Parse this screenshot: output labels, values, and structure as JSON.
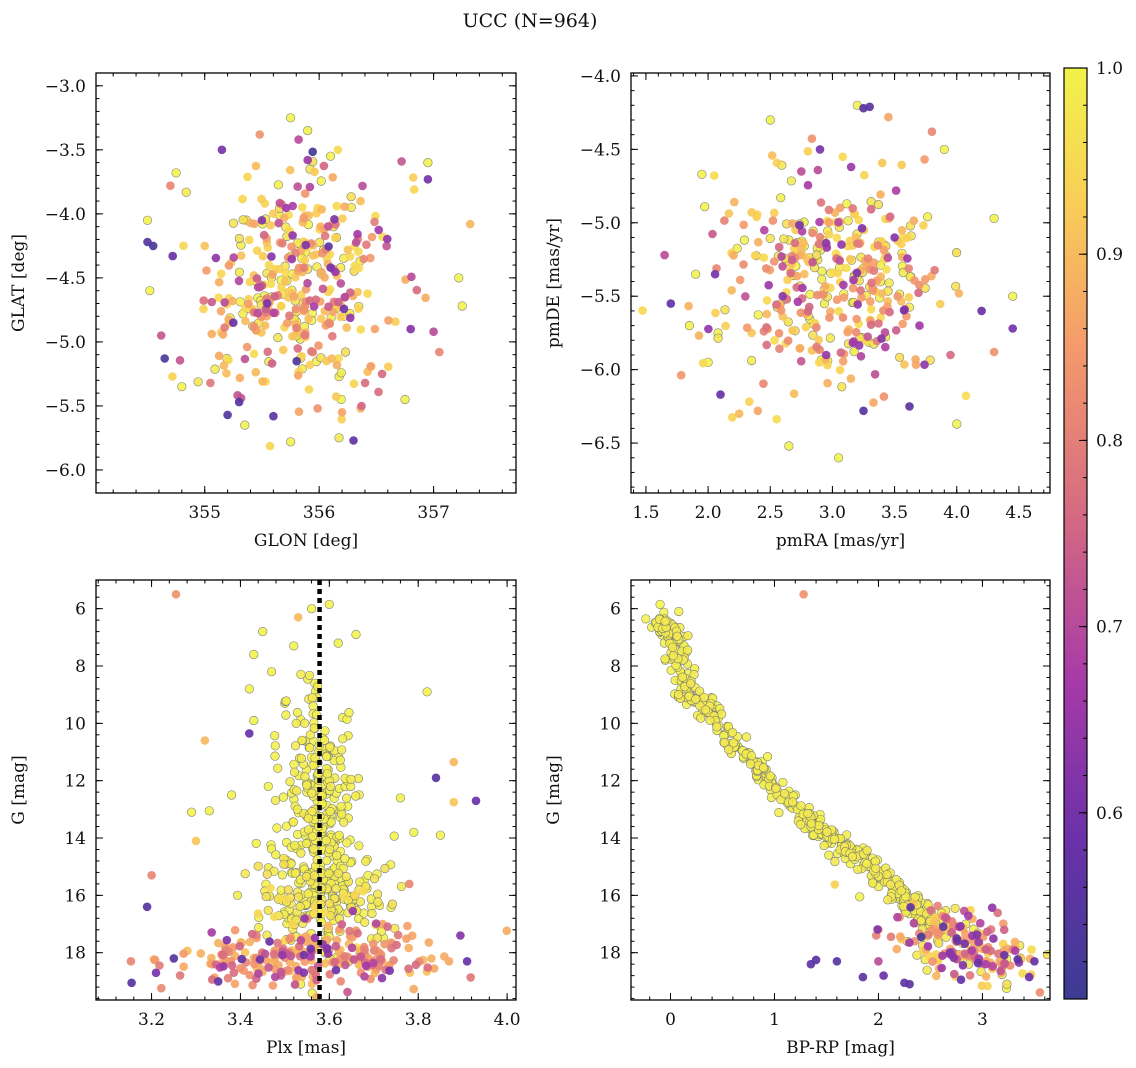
{
  "figure_title": "UCC (N=964)",
  "colors": {
    "stops": [
      "#3b3c93",
      "#6a31a8",
      "#a63aa8",
      "#d56a82",
      "#f49a6b",
      "#f8cf56",
      "#f2f24a"
    ],
    "marker_edge": "#777777",
    "vline": "#000000"
  },
  "chart_data": [
    {
      "id": "glon-glat",
      "type": "scatter",
      "xlabel": "GLON [deg]",
      "ylabel": "GLAT [deg]",
      "xlim": [
        354.05,
        357.72
      ],
      "ylim": [
        -6.18,
        -2.9
      ],
      "invert_y": false,
      "xticks": [
        355,
        356,
        357
      ],
      "yticks": [
        -6.0,
        -5.5,
        -5.0,
        -4.5,
        -4.0,
        -3.5,
        -3.0
      ],
      "tick_decimals_x": 0,
      "tick_decimals_y": 1,
      "points": [
        [
          354.55,
          -4.25,
          0.52
        ],
        [
          354.5,
          -4.22,
          0.55
        ],
        [
          354.72,
          -4.33,
          0.58
        ],
        [
          354.65,
          -5.13,
          0.53
        ],
        [
          355.2,
          -5.57,
          0.54
        ],
        [
          355.3,
          -5.47,
          0.55
        ],
        [
          355.6,
          -5.58,
          0.56
        ],
        [
          356.3,
          -5.77,
          0.57
        ],
        [
          355.15,
          -3.5,
          0.6
        ],
        [
          355.48,
          -3.38,
          0.82
        ],
        [
          355.82,
          -3.42,
          0.7
        ],
        [
          356.72,
          -3.59,
          0.72
        ],
        [
          356.95,
          -3.73,
          0.6
        ],
        [
          357.32,
          -4.08,
          0.88
        ],
        [
          357.0,
          -4.92,
          0.7
        ],
        [
          357.05,
          -5.08,
          0.8
        ],
        [
          356.55,
          -5.25,
          0.75
        ],
        [
          355.05,
          -5.32,
          0.78
        ],
        [
          354.7,
          -3.78,
          0.8
        ],
        [
          355.9,
          -3.58,
          0.65
        ],
        [
          356.2,
          -5.55,
          0.85
        ],
        [
          355.25,
          -4.85,
          0.58
        ],
        [
          356.1,
          -4.42,
          0.6
        ],
        [
          355.5,
          -4.05,
          0.62
        ],
        [
          354.62,
          -4.95,
          0.72
        ],
        [
          355.0,
          -4.25,
          0.9
        ],
        [
          356.8,
          -4.9,
          0.62
        ],
        [
          355.75,
          -3.25,
          1.0
        ],
        [
          355.9,
          -3.35,
          1.0
        ],
        [
          356.1,
          -3.55,
          1.0
        ],
        [
          355.35,
          -5.65,
          1.0
        ],
        [
          355.75,
          -5.78,
          1.0
        ],
        [
          356.75,
          -5.45,
          1.0
        ],
        [
          357.25,
          -4.72,
          1.0
        ],
        [
          357.22,
          -4.5,
          1.0
        ],
        [
          354.5,
          -4.05,
          1.0
        ],
        [
          354.52,
          -4.6,
          1.0
        ],
        [
          354.75,
          -3.68,
          1.0
        ],
        [
          356.95,
          -3.6,
          1.0
        ],
        [
          354.8,
          -5.35,
          1.0
        ]
      ],
      "cluster": {
        "n": 380,
        "center": [
          355.85,
          -4.55
        ],
        "spread": [
          0.42,
          0.42
        ],
        "wmin": 0.5,
        "wmax": 1.0,
        "seed": 11
      }
    },
    {
      "id": "pmra-pmde",
      "type": "scatter",
      "xlabel": "pmRA [mas/yr]",
      "ylabel": "pmDE [mas/yr]",
      "xlim": [
        1.38,
        4.75
      ],
      "ylim": [
        -6.84,
        -3.98
      ],
      "invert_y": false,
      "xticks": [
        1.5,
        2.0,
        2.5,
        3.0,
        3.5,
        4.0,
        4.5
      ],
      "yticks": [
        -6.5,
        -6.0,
        -5.5,
        -5.0,
        -4.5,
        -4.0
      ],
      "tick_decimals_x": 1,
      "tick_decimals_y": 1,
      "points": [
        [
          3.25,
          -4.22,
          0.55
        ],
        [
          3.3,
          -4.21,
          0.56
        ],
        [
          4.45,
          -5.72,
          0.6
        ],
        [
          1.65,
          -5.22,
          0.7
        ],
        [
          1.7,
          -5.55,
          0.57
        ],
        [
          2.1,
          -6.17,
          0.58
        ],
        [
          3.25,
          -6.28,
          0.55
        ],
        [
          3.62,
          -6.25,
          0.56
        ],
        [
          3.95,
          -5.9,
          0.75
        ],
        [
          4.3,
          -5.88,
          0.82
        ],
        [
          3.8,
          -4.38,
          0.8
        ],
        [
          3.45,
          -4.28,
          0.85
        ],
        [
          2.25,
          -6.3,
          0.88
        ],
        [
          2.4,
          -6.28,
          0.85
        ],
        [
          2.9,
          -4.5,
          0.6
        ],
        [
          3.15,
          -4.62,
          0.65
        ],
        [
          2.75,
          -4.65,
          0.7
        ],
        [
          3.5,
          -5.1,
          0.62
        ],
        [
          2.6,
          -5.5,
          0.63
        ],
        [
          2.95,
          -5.9,
          0.64
        ],
        [
          3.7,
          -5.7,
          0.66
        ],
        [
          2.35,
          -5.75,
          0.9
        ],
        [
          4.2,
          -5.6,
          0.58
        ],
        [
          4.45,
          -5.5,
          1.0
        ],
        [
          1.95,
          -4.67,
          1.0
        ],
        [
          3.05,
          -6.6,
          1.0
        ],
        [
          2.65,
          -6.52,
          1.0
        ],
        [
          4.0,
          -6.37,
          1.0
        ],
        [
          4.3,
          -4.97,
          1.0
        ],
        [
          2.5,
          -4.3,
          1.0
        ],
        [
          3.2,
          -4.2,
          1.0
        ],
        [
          3.9,
          -4.5,
          1.0
        ],
        [
          1.85,
          -5.7,
          1.0
        ],
        [
          1.9,
          -5.35,
          1.0
        ],
        [
          2.0,
          -5.95,
          1.0
        ]
      ],
      "cluster": {
        "n": 380,
        "center": [
          3.0,
          -5.42
        ],
        "spread": [
          0.42,
          0.36
        ],
        "wmin": 0.5,
        "wmax": 1.0,
        "seed": 23
      }
    },
    {
      "id": "plx-g",
      "type": "scatter",
      "xlabel": "Plx [mas]",
      "ylabel": "G [mag]",
      "xlim": [
        3.075,
        4.02
      ],
      "ylim": [
        5.0,
        19.65
      ],
      "invert_y": true,
      "xticks": [
        3.2,
        3.4,
        3.6,
        3.8,
        4.0
      ],
      "yticks": [
        6,
        8,
        10,
        12,
        14,
        16,
        18
      ],
      "tick_decimals_x": 1,
      "tick_decimals_y": 0,
      "vline": 3.578,
      "points": [
        [
          3.255,
          5.5,
          0.82
        ],
        [
          3.32,
          10.6,
          0.88
        ],
        [
          3.3,
          14.1,
          0.9
        ],
        [
          3.42,
          10.35,
          0.58
        ],
        [
          3.2,
          15.3,
          0.8
        ],
        [
          3.19,
          16.4,
          0.55
        ],
        [
          3.93,
          12.7,
          0.58
        ],
        [
          3.84,
          11.9,
          0.55
        ],
        [
          3.88,
          11.35,
          0.88
        ],
        [
          3.88,
          12.75,
          0.9
        ],
        [
          3.155,
          19.05,
          0.55
        ],
        [
          3.25,
          18.2,
          0.55
        ],
        [
          3.91,
          18.3,
          0.58
        ],
        [
          3.895,
          17.4,
          0.62
        ],
        [
          3.21,
          18.7,
          0.6
        ],
        [
          3.35,
          19.0,
          0.57
        ],
        [
          3.72,
          17.0,
          0.85
        ],
        [
          3.78,
          15.6,
          0.8
        ],
        [
          3.53,
          6.3,
          0.88
        ],
        [
          3.56,
          6.0,
          1.0
        ],
        [
          3.6,
          5.85,
          1.0
        ],
        [
          3.45,
          6.8,
          1.0
        ],
        [
          3.43,
          7.6,
          1.0
        ],
        [
          3.66,
          6.9,
          1.0
        ],
        [
          3.52,
          7.3,
          1.0
        ],
        [
          3.82,
          8.9,
          1.0
        ],
        [
          3.42,
          8.8,
          1.0
        ],
        [
          3.47,
          8.2,
          1.0
        ],
        [
          3.62,
          7.2,
          1.0
        ],
        [
          3.29,
          13.1,
          1.0
        ],
        [
          3.33,
          13.05,
          1.0
        ],
        [
          3.76,
          12.6,
          1.0
        ],
        [
          3.85,
          13.9,
          1.0
        ],
        [
          3.79,
          13.8,
          1.0
        ],
        [
          3.43,
          9.9,
          1.0
        ],
        [
          3.5,
          9.3,
          1.0
        ],
        [
          3.63,
          9.8,
          1.0
        ],
        [
          3.38,
          12.5,
          1.0
        ]
      ],
      "clusters": [
        {
          "n": 300,
          "center": [
            3.575,
            13.3
          ],
          "spread": [
            0.045,
            2.2
          ],
          "wmin": 0.97,
          "wmax": 1.0,
          "seed": 37
        },
        {
          "n": 160,
          "center": [
            3.58,
            16.2
          ],
          "spread": [
            0.08,
            0.8
          ],
          "wmin": 0.92,
          "wmax": 1.0,
          "seed": 41
        },
        {
          "n": 240,
          "center": [
            3.56,
            18.2
          ],
          "spread": [
            0.16,
            0.55
          ],
          "wmin": 0.5,
          "wmax": 0.9,
          "seed": 53
        }
      ]
    },
    {
      "id": "bprp-g",
      "type": "scatter",
      "xlabel": "BP-RP [mag]",
      "ylabel": "G [mag]",
      "xlim": [
        -0.38,
        3.65
      ],
      "ylim": [
        5.0,
        19.65
      ],
      "invert_y": true,
      "xticks": [
        0,
        1,
        2,
        3
      ],
      "yticks": [
        6,
        8,
        10,
        12,
        14,
        16,
        18
      ],
      "tick_decimals_x": 0,
      "tick_decimals_y": 0,
      "sequence_knots": [
        [
          -0.1,
          6.4
        ],
        [
          0.05,
          7.0
        ],
        [
          0.15,
          8.8
        ],
        [
          0.4,
          9.8
        ],
        [
          0.8,
          11.4
        ],
        [
          1.2,
          12.9
        ],
        [
          1.6,
          14.1
        ],
        [
          2.0,
          15.2
        ],
        [
          2.3,
          16.2
        ],
        [
          2.55,
          17.1
        ],
        [
          2.85,
          17.9
        ],
        [
          3.25,
          18.4
        ]
      ],
      "sequence_points": [
        [
          -0.1,
          5.85,
          1.0
        ],
        [
          0.08,
          6.1,
          1.0
        ],
        [
          0.0,
          6.5,
          1.0
        ],
        [
          -0.05,
          7.8,
          1.0
        ]
      ],
      "points": [
        [
          1.28,
          5.5,
          0.82
        ],
        [
          1.35,
          18.4,
          0.56
        ],
        [
          1.4,
          18.25,
          0.55
        ],
        [
          1.6,
          18.3,
          0.55
        ],
        [
          1.85,
          18.85,
          0.56
        ],
        [
          2.05,
          18.8,
          0.58
        ],
        [
          2.25,
          19.05,
          0.57
        ],
        [
          2.3,
          19.1,
          0.56
        ],
        [
          3.5,
          18.3,
          0.58
        ],
        [
          3.45,
          18.85,
          0.58
        ],
        [
          2.0,
          18.3,
          0.7
        ],
        [
          2.0,
          17.2,
          0.85
        ],
        [
          2.35,
          17.6,
          0.82
        ],
        [
          1.58,
          15.62,
          0.92
        ],
        [
          1.82,
          16.05,
          1.0
        ],
        [
          1.2,
          12.5,
          1.0
        ]
      ],
      "bands": [
        {
          "n": 500,
          "tmin": 0.0,
          "tmax": 0.82,
          "dx": 0.06,
          "dy": 0.16,
          "wmin": 0.97,
          "wmax": 1.0,
          "seed": 61
        },
        {
          "n": 200,
          "tmin": 0.8,
          "tmax": 1.0,
          "dx": 0.18,
          "dy": 0.45,
          "wmin": 0.5,
          "wmax": 1.0,
          "seed": 67
        }
      ]
    }
  ],
  "colorbar": {
    "min": 0.5,
    "max": 1.0,
    "ticks": [
      0.6,
      0.7,
      0.8,
      0.9,
      1.0
    ],
    "tick_labels": [
      "0.6",
      "0.7",
      "0.8",
      "0.9",
      "1.0"
    ]
  }
}
